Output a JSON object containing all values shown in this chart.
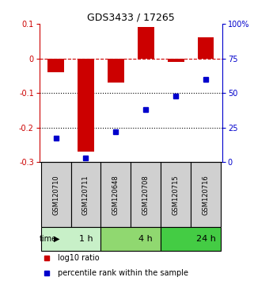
{
  "title": "GDS3433 / 17265",
  "samples": [
    "GSM120710",
    "GSM120711",
    "GSM120648",
    "GSM120708",
    "GSM120715",
    "GSM120716"
  ],
  "log10_ratio": [
    -0.04,
    -0.27,
    -0.07,
    0.09,
    -0.01,
    0.06
  ],
  "percentile_rank": [
    17,
    3,
    22,
    38,
    48,
    60
  ],
  "time_groups": [
    {
      "label": "1 h",
      "start": 0,
      "end": 2,
      "color": "#c8f0c8"
    },
    {
      "label": "4 h",
      "start": 2,
      "end": 4,
      "color": "#90d870"
    },
    {
      "label": "24 h",
      "start": 4,
      "end": 6,
      "color": "#44cc44"
    }
  ],
  "bar_color": "#cc0000",
  "dot_color": "#0000cc",
  "dashed_line_color": "#cc0000",
  "dotted_line_color": "#000000",
  "ylim_left": [
    -0.3,
    0.1
  ],
  "ylim_right": [
    0,
    100
  ],
  "yticks_left": [
    0.1,
    0.0,
    -0.1,
    -0.2,
    -0.3
  ],
  "yticks_right": [
    100,
    75,
    50,
    25,
    0
  ],
  "background_color": "#ffffff",
  "sample_box_color": "#d0d0d0",
  "legend_red": "log10 ratio",
  "legend_blue": "percentile rank within the sample"
}
